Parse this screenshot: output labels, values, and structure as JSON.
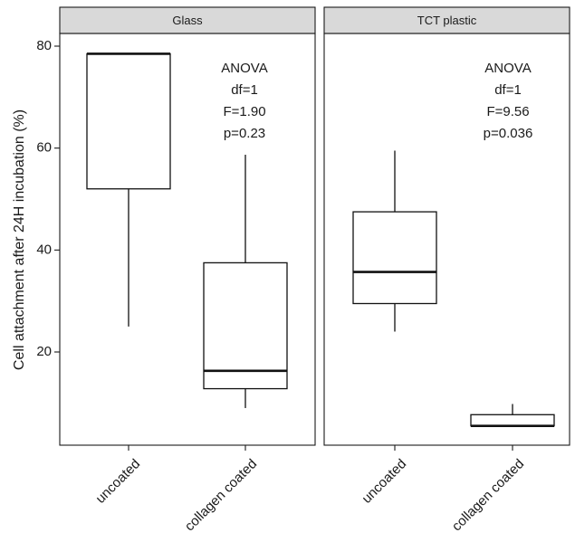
{
  "chart_data": {
    "type": "boxplot",
    "ylabel": "Cell attachment after 24H incubation (%)",
    "xlabel": "",
    "ylim": [
      2,
      83
    ],
    "yticks": [
      20,
      40,
      60,
      80
    ],
    "categories": [
      "uncoated",
      "collagen coated"
    ],
    "grid": false,
    "legend": "none",
    "panels": [
      {
        "title": "Glass",
        "boxes": [
          {
            "category": "uncoated",
            "min": 25,
            "q1": 52,
            "median": 78.5,
            "q3": 78.5,
            "max": 78.5
          },
          {
            "category": "collagen coated",
            "min": 9,
            "q1": 12.8,
            "median": 16.3,
            "q3": 37.5,
            "max": 58.7
          }
        ],
        "annotation": [
          "ANOVA",
          "df=1",
          "F=1.90",
          "p=0.23"
        ]
      },
      {
        "title": "TCT plastic",
        "boxes": [
          {
            "category": "uncoated",
            "min": 24,
            "q1": 29.5,
            "median": 35.7,
            "q3": 47.5,
            "max": 59.5
          },
          {
            "category": "collagen coated",
            "min": 5.5,
            "q1": 5.5,
            "median": 5.5,
            "q3": 7.7,
            "max": 9.8
          }
        ],
        "annotation": [
          "ANOVA",
          "df=1",
          "F=9.56",
          "p=0.036"
        ]
      }
    ]
  }
}
